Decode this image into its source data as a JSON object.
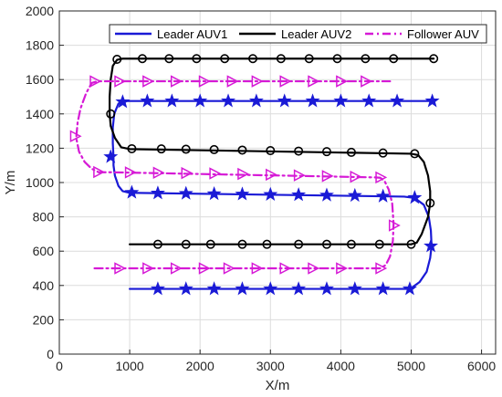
{
  "chart_data": {
    "type": "line",
    "xlabel": "X/m",
    "ylabel": "Y/m",
    "xlim": [
      0,
      6200
    ],
    "ylim": [
      0,
      2000
    ],
    "xticks": [
      0,
      1000,
      2000,
      3000,
      4000,
      5000,
      6000
    ],
    "yticks": [
      0,
      200,
      400,
      600,
      800,
      1000,
      1200,
      1400,
      1600,
      1800,
      2000
    ],
    "grid": true,
    "legend_position": "top",
    "series": [
      {
        "name": "Leader AUV1",
        "color": "#1a1ad6",
        "line_style": "solid",
        "marker": "star",
        "path": [
          [
            1000,
            380
          ],
          [
            4980,
            380
          ],
          [
            5020,
            390
          ],
          [
            5120,
            420
          ],
          [
            5220,
            480
          ],
          [
            5270,
            560
          ],
          [
            5290,
            630
          ],
          [
            5280,
            720
          ],
          [
            5250,
            800
          ],
          [
            5180,
            870
          ],
          [
            5050,
            910
          ],
          [
            4900,
            918
          ],
          [
            1000,
            940
          ],
          [
            900,
            950
          ],
          [
            840,
            980
          ],
          [
            790,
            1040
          ],
          [
            770,
            1100
          ],
          [
            770,
            1150
          ],
          [
            760,
            1230
          ],
          [
            760,
            1320
          ],
          [
            780,
            1400
          ],
          [
            840,
            1460
          ],
          [
            900,
            1474
          ],
          [
            1000,
            1475
          ],
          [
            5320,
            1475
          ]
        ],
        "markers": [
          [
            1400,
            380
          ],
          [
            1800,
            380
          ],
          [
            2200,
            380
          ],
          [
            2600,
            380
          ],
          [
            3000,
            380
          ],
          [
            3400,
            380
          ],
          [
            3800,
            380
          ],
          [
            4200,
            380
          ],
          [
            4600,
            380
          ],
          [
            4980,
            380
          ],
          [
            5280,
            630
          ],
          [
            5050,
            912
          ],
          [
            4600,
            920
          ],
          [
            4200,
            924
          ],
          [
            3800,
            926
          ],
          [
            3400,
            928
          ],
          [
            3000,
            930
          ],
          [
            2600,
            932
          ],
          [
            2200,
            934
          ],
          [
            1800,
            936
          ],
          [
            1400,
            938
          ],
          [
            1030,
            942
          ],
          [
            730,
            1150
          ],
          [
            900,
            1470
          ],
          [
            1250,
            1475
          ],
          [
            1600,
            1475
          ],
          [
            2000,
            1475
          ],
          [
            2400,
            1475
          ],
          [
            2800,
            1475
          ],
          [
            3200,
            1475
          ],
          [
            3600,
            1475
          ],
          [
            4000,
            1475
          ],
          [
            4400,
            1475
          ],
          [
            4800,
            1475
          ],
          [
            5300,
            1475
          ]
        ]
      },
      {
        "name": "Leader AUV2",
        "color": "#000000",
        "line_style": "solid",
        "marker": "circle",
        "path": [
          [
            1000,
            640
          ],
          [
            5000,
            640
          ],
          [
            5080,
            650
          ],
          [
            5150,
            700
          ],
          [
            5240,
            800
          ],
          [
            5270,
            880
          ],
          [
            5270,
            950
          ],
          [
            5240,
            1040
          ],
          [
            5180,
            1120
          ],
          [
            5100,
            1160
          ],
          [
            5000,
            1168
          ],
          [
            1000,
            1195
          ],
          [
            880,
            1205
          ],
          [
            790,
            1260
          ],
          [
            730,
            1330
          ],
          [
            715,
            1400
          ],
          [
            715,
            1500
          ],
          [
            730,
            1600
          ],
          [
            760,
            1680
          ],
          [
            820,
            1715
          ],
          [
            900,
            1722
          ],
          [
            5320,
            1722
          ]
        ],
        "markers": [
          [
            1400,
            640
          ],
          [
            1800,
            640
          ],
          [
            2150,
            640
          ],
          [
            2600,
            640
          ],
          [
            2950,
            640
          ],
          [
            3400,
            640
          ],
          [
            3800,
            640
          ],
          [
            4150,
            640
          ],
          [
            4550,
            640
          ],
          [
            5000,
            640
          ],
          [
            5270,
            880
          ],
          [
            5050,
            1168
          ],
          [
            4600,
            1172
          ],
          [
            4150,
            1176
          ],
          [
            3800,
            1180
          ],
          [
            3400,
            1183
          ],
          [
            3000,
            1186
          ],
          [
            2600,
            1189
          ],
          [
            2200,
            1192
          ],
          [
            1800,
            1194
          ],
          [
            1450,
            1196
          ],
          [
            1030,
            1197
          ],
          [
            730,
            1400
          ],
          [
            820,
            1718
          ],
          [
            1180,
            1722
          ],
          [
            1560,
            1722
          ],
          [
            1950,
            1722
          ],
          [
            2350,
            1722
          ],
          [
            2750,
            1722
          ],
          [
            3150,
            1722
          ],
          [
            3550,
            1722
          ],
          [
            3950,
            1722
          ],
          [
            4350,
            1722
          ],
          [
            4750,
            1722
          ],
          [
            5320,
            1722
          ]
        ]
      },
      {
        "name": "Follower AUV",
        "color": "#d61ad6",
        "line_style": "dashdot",
        "marker": "triangle-right",
        "path": [
          [
            500,
            500
          ],
          [
            4560,
            500
          ],
          [
            4640,
            520
          ],
          [
            4700,
            570
          ],
          [
            4740,
            660
          ],
          [
            4750,
            760
          ],
          [
            4730,
            880
          ],
          [
            4680,
            960
          ],
          [
            4620,
            1010
          ],
          [
            4560,
            1028
          ],
          [
            4480,
            1030
          ],
          [
            700,
            1060
          ],
          [
            560,
            1060
          ],
          [
            460,
            1080
          ],
          [
            360,
            1120
          ],
          [
            280,
            1180
          ],
          [
            240,
            1260
          ],
          [
            260,
            1350
          ],
          [
            300,
            1430
          ],
          [
            380,
            1520
          ],
          [
            460,
            1580
          ],
          [
            540,
            1590
          ],
          [
            4700,
            1590
          ]
        ],
        "markers": [
          [
            850,
            500
          ],
          [
            1250,
            500
          ],
          [
            1650,
            500
          ],
          [
            2050,
            500
          ],
          [
            2400,
            500
          ],
          [
            2800,
            500
          ],
          [
            3200,
            500
          ],
          [
            3600,
            500
          ],
          [
            4000,
            500
          ],
          [
            4560,
            500
          ],
          [
            4750,
            750
          ],
          [
            4560,
            1030
          ],
          [
            4200,
            1034
          ],
          [
            3800,
            1038
          ],
          [
            3400,
            1042
          ],
          [
            3000,
            1046
          ],
          [
            2600,
            1050
          ],
          [
            2200,
            1053
          ],
          [
            1800,
            1055
          ],
          [
            1400,
            1057
          ],
          [
            1000,
            1059
          ],
          [
            550,
            1061
          ],
          [
            220,
            1270
          ],
          [
            500,
            1590
          ],
          [
            850,
            1590
          ],
          [
            1250,
            1590
          ],
          [
            1650,
            1590
          ],
          [
            2050,
            1590
          ],
          [
            2450,
            1590
          ],
          [
            2800,
            1590
          ],
          [
            3200,
            1590
          ],
          [
            3600,
            1590
          ],
          [
            4000,
            1590
          ],
          [
            4350,
            1590
          ]
        ]
      }
    ]
  }
}
